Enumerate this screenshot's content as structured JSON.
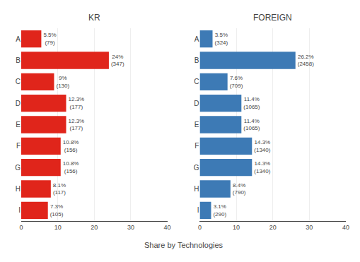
{
  "chart_data": [
    {
      "type": "bar",
      "orientation": "horizontal",
      "title": "KR",
      "xlabel": "Share by Technologies",
      "categories": [
        "A",
        "B",
        "C",
        "D",
        "E",
        "F",
        "G",
        "H",
        "I"
      ],
      "values": [
        5.5,
        24.0,
        9.0,
        12.3,
        12.3,
        10.8,
        10.8,
        8.1,
        7.3
      ],
      "value_labels": [
        "5.5%\n(79)",
        "24%\n(347)",
        "9%\n(130)",
        "12.3%\n(177)",
        "12.3%\n(177)",
        "10.8%\n(156)",
        "10.8%\n(156)",
        "8.1%\n(117)",
        "7.3%\n(105)"
      ],
      "data_labels": true,
      "color": "#e0251b",
      "xlim": [
        0,
        40
      ],
      "xticks": [
        0,
        10,
        20,
        30,
        40
      ],
      "grid": true
    },
    {
      "type": "bar",
      "orientation": "horizontal",
      "title": "FOREIGN",
      "categories": [
        "A",
        "B",
        "C",
        "D",
        "E",
        "F",
        "G",
        "H",
        "I"
      ],
      "values": [
        3.5,
        26.2,
        7.6,
        11.4,
        11.4,
        14.3,
        14.3,
        8.4,
        3.1
      ],
      "value_labels": [
        "3.5%\n(324)",
        "26.2%\n(2458)",
        "7.6%\n(709)",
        "11.4%\n(1065)",
        "11.4%\n(1065)",
        "14.3%\n(1340)",
        "14.3%\n(1340)",
        "8.4%\n(790)",
        "3.1%\n(290)"
      ],
      "data_labels": true,
      "color": "#3d7ab5",
      "xlim": [
        0,
        40
      ],
      "xticks": [
        0,
        10,
        20,
        30,
        40
      ],
      "grid": true
    }
  ]
}
